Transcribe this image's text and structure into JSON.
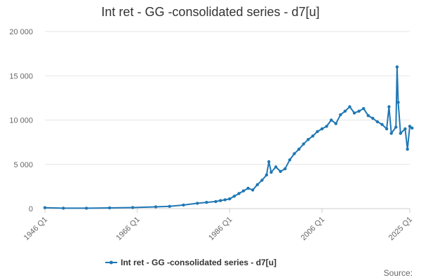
{
  "chart_data": {
    "type": "line",
    "title": "Int ret - GG -consolidated series - d7[u]",
    "xlabel": "",
    "ylabel": "",
    "y_ticks": [
      "0",
      "5 000",
      "10 000",
      "15 000",
      "20 000"
    ],
    "ylim": [
      0,
      20000
    ],
    "x_ticks": [
      "1946 Q1",
      "1966 Q1",
      "1986 Q1",
      "2006 Q1",
      "2025 Q1"
    ],
    "grid": true,
    "legend_position": "bottom-center",
    "series": [
      {
        "name": "Int ret - GG -consolidated series - d7[u]",
        "color": "#1f77b4",
        "x": [
          1946.0,
          1950.0,
          1955.0,
          1960.0,
          1965.0,
          1970.0,
          1973.0,
          1976.0,
          1979.0,
          1981.0,
          1983.0,
          1984.0,
          1985.0,
          1986.0,
          1987.0,
          1988.0,
          1989.0,
          1990.0,
          1991.0,
          1992.0,
          1993.0,
          1994.0,
          1994.5,
          1995.0,
          1996.0,
          1997.0,
          1998.0,
          1999.0,
          2000.0,
          2001.0,
          2002.0,
          2003.0,
          2004.0,
          2005.0,
          2006.0,
          2007.0,
          2008.0,
          2009.0,
          2010.0,
          2011.0,
          2012.0,
          2013.0,
          2014.0,
          2015.0,
          2016.0,
          2017.0,
          2018.0,
          2019.0,
          2020.0,
          2020.5,
          2021.0,
          2022.0,
          2022.25,
          2022.5,
          2023.0,
          2024.0,
          2024.5,
          2025.0,
          2025.5
        ],
        "values": [
          100,
          50,
          50,
          80,
          120,
          200,
          250,
          400,
          600,
          700,
          800,
          900,
          1000,
          1100,
          1400,
          1700,
          2000,
          2300,
          2100,
          2700,
          3200,
          3800,
          5300,
          4100,
          4700,
          4200,
          4500,
          5500,
          6200,
          6700,
          7300,
          7800,
          8200,
          8700,
          9000,
          9300,
          10000,
          9600,
          10600,
          11000,
          11500,
          10800,
          11000,
          11300,
          10500,
          10200,
          9800,
          9500,
          9000,
          11500,
          8500,
          9200,
          16000,
          12000,
          8500,
          9000,
          6700,
          9300,
          9100
        ]
      }
    ],
    "source_label": "Source:"
  }
}
